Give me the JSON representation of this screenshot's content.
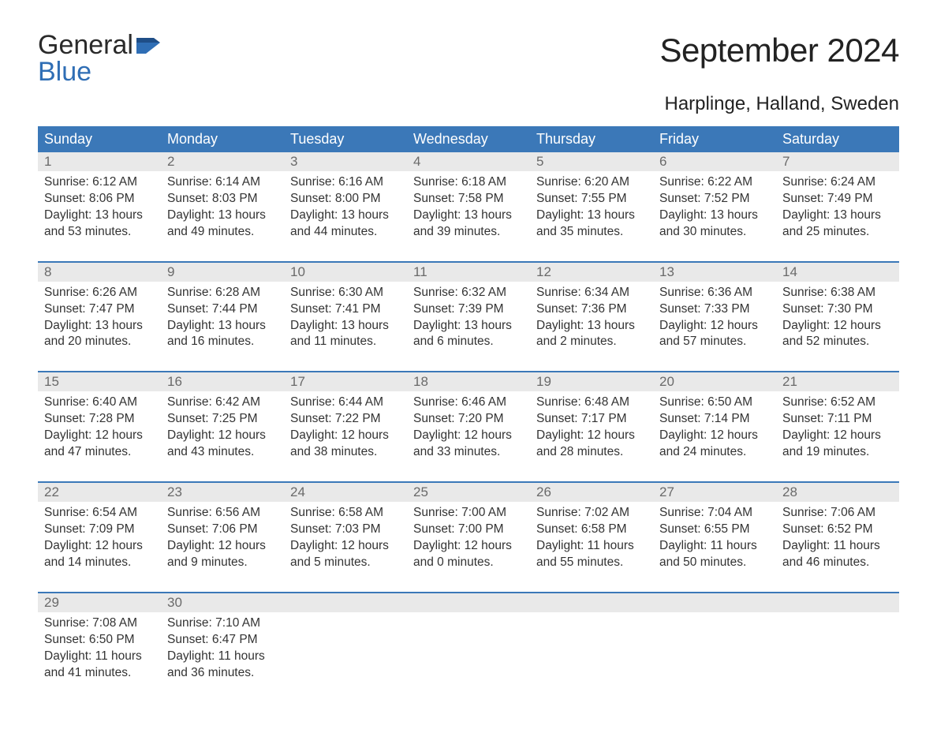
{
  "logo": {
    "word1": "General",
    "word2": "Blue"
  },
  "title": "September 2024",
  "location": "Harplinge, Halland, Sweden",
  "colors": {
    "header_bg": "#3b78b8",
    "header_text": "#ffffff",
    "daynum_bg": "#e9e9e9",
    "daynum_text": "#6a6a6a",
    "body_text": "#333333",
    "logo_blue": "#2f6eb5",
    "rule": "#3b78b8"
  },
  "days_of_week": [
    "Sunday",
    "Monday",
    "Tuesday",
    "Wednesday",
    "Thursday",
    "Friday",
    "Saturday"
  ],
  "weeks": [
    [
      {
        "n": "1",
        "sunrise": "6:12 AM",
        "sunset": "8:06 PM",
        "dl1": "13 hours",
        "dl2": "and 53 minutes."
      },
      {
        "n": "2",
        "sunrise": "6:14 AM",
        "sunset": "8:03 PM",
        "dl1": "13 hours",
        "dl2": "and 49 minutes."
      },
      {
        "n": "3",
        "sunrise": "6:16 AM",
        "sunset": "8:00 PM",
        "dl1": "13 hours",
        "dl2": "and 44 minutes."
      },
      {
        "n": "4",
        "sunrise": "6:18 AM",
        "sunset": "7:58 PM",
        "dl1": "13 hours",
        "dl2": "and 39 minutes."
      },
      {
        "n": "5",
        "sunrise": "6:20 AM",
        "sunset": "7:55 PM",
        "dl1": "13 hours",
        "dl2": "and 35 minutes."
      },
      {
        "n": "6",
        "sunrise": "6:22 AM",
        "sunset": "7:52 PM",
        "dl1": "13 hours",
        "dl2": "and 30 minutes."
      },
      {
        "n": "7",
        "sunrise": "6:24 AM",
        "sunset": "7:49 PM",
        "dl1": "13 hours",
        "dl2": "and 25 minutes."
      }
    ],
    [
      {
        "n": "8",
        "sunrise": "6:26 AM",
        "sunset": "7:47 PM",
        "dl1": "13 hours",
        "dl2": "and 20 minutes."
      },
      {
        "n": "9",
        "sunrise": "6:28 AM",
        "sunset": "7:44 PM",
        "dl1": "13 hours",
        "dl2": "and 16 minutes."
      },
      {
        "n": "10",
        "sunrise": "6:30 AM",
        "sunset": "7:41 PM",
        "dl1": "13 hours",
        "dl2": "and 11 minutes."
      },
      {
        "n": "11",
        "sunrise": "6:32 AM",
        "sunset": "7:39 PM",
        "dl1": "13 hours",
        "dl2": "and 6 minutes."
      },
      {
        "n": "12",
        "sunrise": "6:34 AM",
        "sunset": "7:36 PM",
        "dl1": "13 hours",
        "dl2": "and 2 minutes."
      },
      {
        "n": "13",
        "sunrise": "6:36 AM",
        "sunset": "7:33 PM",
        "dl1": "12 hours",
        "dl2": "and 57 minutes."
      },
      {
        "n": "14",
        "sunrise": "6:38 AM",
        "sunset": "7:30 PM",
        "dl1": "12 hours",
        "dl2": "and 52 minutes."
      }
    ],
    [
      {
        "n": "15",
        "sunrise": "6:40 AM",
        "sunset": "7:28 PM",
        "dl1": "12 hours",
        "dl2": "and 47 minutes."
      },
      {
        "n": "16",
        "sunrise": "6:42 AM",
        "sunset": "7:25 PM",
        "dl1": "12 hours",
        "dl2": "and 43 minutes."
      },
      {
        "n": "17",
        "sunrise": "6:44 AM",
        "sunset": "7:22 PM",
        "dl1": "12 hours",
        "dl2": "and 38 minutes."
      },
      {
        "n": "18",
        "sunrise": "6:46 AM",
        "sunset": "7:20 PM",
        "dl1": "12 hours",
        "dl2": "and 33 minutes."
      },
      {
        "n": "19",
        "sunrise": "6:48 AM",
        "sunset": "7:17 PM",
        "dl1": "12 hours",
        "dl2": "and 28 minutes."
      },
      {
        "n": "20",
        "sunrise": "6:50 AM",
        "sunset": "7:14 PM",
        "dl1": "12 hours",
        "dl2": "and 24 minutes."
      },
      {
        "n": "21",
        "sunrise": "6:52 AM",
        "sunset": "7:11 PM",
        "dl1": "12 hours",
        "dl2": "and 19 minutes."
      }
    ],
    [
      {
        "n": "22",
        "sunrise": "6:54 AM",
        "sunset": "7:09 PM",
        "dl1": "12 hours",
        "dl2": "and 14 minutes."
      },
      {
        "n": "23",
        "sunrise": "6:56 AM",
        "sunset": "7:06 PM",
        "dl1": "12 hours",
        "dl2": "and 9 minutes."
      },
      {
        "n": "24",
        "sunrise": "6:58 AM",
        "sunset": "7:03 PM",
        "dl1": "12 hours",
        "dl2": "and 5 minutes."
      },
      {
        "n": "25",
        "sunrise": "7:00 AM",
        "sunset": "7:00 PM",
        "dl1": "12 hours",
        "dl2": "and 0 minutes."
      },
      {
        "n": "26",
        "sunrise": "7:02 AM",
        "sunset": "6:58 PM",
        "dl1": "11 hours",
        "dl2": "and 55 minutes."
      },
      {
        "n": "27",
        "sunrise": "7:04 AM",
        "sunset": "6:55 PM",
        "dl1": "11 hours",
        "dl2": "and 50 minutes."
      },
      {
        "n": "28",
        "sunrise": "7:06 AM",
        "sunset": "6:52 PM",
        "dl1": "11 hours",
        "dl2": "and 46 minutes."
      }
    ],
    [
      {
        "n": "29",
        "sunrise": "7:08 AM",
        "sunset": "6:50 PM",
        "dl1": "11 hours",
        "dl2": "and 41 minutes."
      },
      {
        "n": "30",
        "sunrise": "7:10 AM",
        "sunset": "6:47 PM",
        "dl1": "11 hours",
        "dl2": "and 36 minutes."
      },
      null,
      null,
      null,
      null,
      null
    ]
  ],
  "labels": {
    "sunrise": "Sunrise: ",
    "sunset": "Sunset: ",
    "daylight": "Daylight: "
  }
}
